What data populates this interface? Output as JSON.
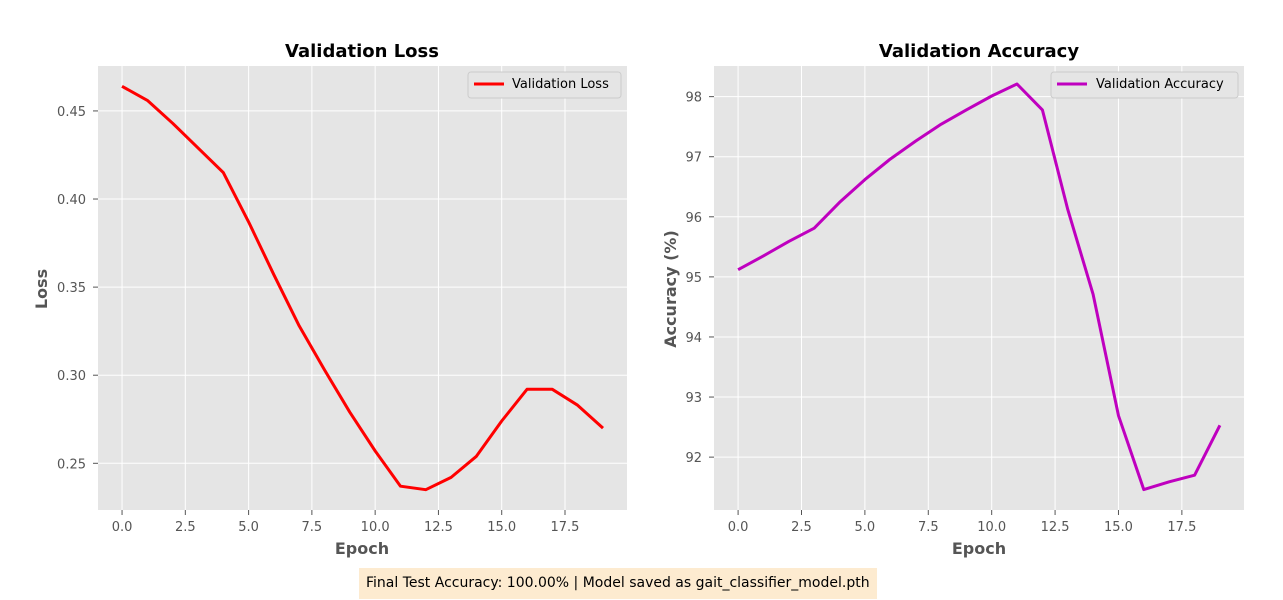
{
  "chart_data": [
    {
      "type": "line",
      "title": "Validation Loss",
      "xlabel": "Epoch",
      "ylabel": "Loss",
      "xlim": [
        -0.95,
        19.95
      ],
      "ylim": [
        0.2235,
        0.4755
      ],
      "xticks": [
        "0.0",
        "2.5",
        "5.0",
        "7.5",
        "10.0",
        "12.5",
        "15.0",
        "17.5"
      ],
      "yticks": [
        "0.25",
        "0.30",
        "0.35",
        "0.40",
        "0.45"
      ],
      "grid": true,
      "legend_position": "top-right",
      "series": [
        {
          "name": "Validation Loss",
          "color": "#ff0000",
          "x": [
            0,
            1,
            2,
            3,
            4,
            5,
            6,
            7,
            8,
            9,
            10,
            11,
            12,
            13,
            14,
            15,
            16,
            17,
            18,
            19
          ],
          "y": [
            0.464,
            0.456,
            0.443,
            0.429,
            0.415,
            0.387,
            0.357,
            0.328,
            0.303,
            0.279,
            0.257,
            0.237,
            0.235,
            0.242,
            0.254,
            0.274,
            0.292,
            0.292,
            0.283,
            0.27
          ]
        }
      ]
    },
    {
      "type": "line",
      "title": "Validation Accuracy",
      "xlabel": "Epoch",
      "ylabel": "Accuracy (%)",
      "xlim": [
        -0.95,
        19.95
      ],
      "ylim": [
        91.12,
        98.51
      ],
      "xticks": [
        "0.0",
        "2.5",
        "5.0",
        "7.5",
        "10.0",
        "12.5",
        "15.0",
        "17.5"
      ],
      "yticks": [
        "92",
        "93",
        "94",
        "95",
        "96",
        "97",
        "98"
      ],
      "grid": true,
      "legend_position": "top-right",
      "series": [
        {
          "name": "Validation Accuracy",
          "color": "#bf00bf",
          "x": [
            0,
            1,
            2,
            3,
            4,
            5,
            6,
            7,
            8,
            9,
            10,
            11,
            12,
            13,
            14,
            15,
            16,
            17,
            18,
            19
          ],
          "y": [
            95.12,
            95.35,
            95.59,
            95.81,
            96.24,
            96.62,
            96.96,
            97.26,
            97.54,
            97.78,
            98.01,
            98.21,
            97.78,
            96.12,
            94.71,
            92.69,
            91.46,
            91.59,
            91.7,
            92.53
          ]
        }
      ]
    }
  ],
  "footer": {
    "caption": "Final Test Accuracy: 100.00% | Model saved as gait_classifier_model.pth"
  }
}
